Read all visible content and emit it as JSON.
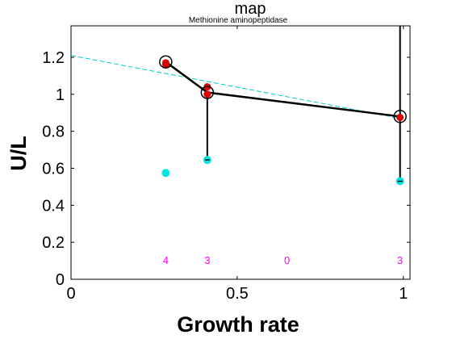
{
  "chart_data": {
    "type": "scatter",
    "title": "map",
    "subtitle": "Methionine aminopeptidase",
    "xlabel": "Growth rate",
    "ylabel": "U/L",
    "xlim": [
      0,
      1.02
    ],
    "ylim": [
      0,
      1.37
    ],
    "xticks": [
      0,
      0.5,
      1
    ],
    "xtick_labels": [
      "0",
      "0.5",
      "1"
    ],
    "yticks": [
      0,
      0.2,
      0.4,
      0.6,
      0.8,
      1.0,
      1.2
    ],
    "ytick_labels": [
      "0",
      "0.2",
      "0.4",
      "0.6",
      "0.8",
      "1",
      "1.2"
    ],
    "grid": false,
    "series": [
      {
        "role": "mean-line",
        "color": "#000000",
        "x": [
          0.285,
          0.41,
          0.99
        ],
        "y": [
          1.175,
          1.01,
          0.88
        ]
      },
      {
        "role": "red-points",
        "color": "#dd0000",
        "x": [
          0.285,
          0.285,
          0.41,
          0.41,
          0.99
        ],
        "y": [
          1.17,
          1.16,
          1.04,
          1.0,
          0.875
        ]
      },
      {
        "role": "cyan-points",
        "color": "#00e5e5",
        "x": [
          0.285,
          0.41,
          0.99
        ],
        "y": [
          0.575,
          0.645,
          0.53
        ]
      },
      {
        "role": "trend-line",
        "color": "#00cccc",
        "style": "dashed",
        "x": [
          0,
          0.99
        ],
        "y": [
          1.21,
          0.87
        ]
      }
    ],
    "error_bars": [
      {
        "x": 0.41,
        "low": 0.645,
        "high": 1.01
      },
      {
        "x": 0.99,
        "low": 0.53,
        "high": 1.37
      }
    ],
    "counts": [
      {
        "x": 0.285,
        "label": "4"
      },
      {
        "x": 0.41,
        "label": "3"
      },
      {
        "x": 0.65,
        "label": "0"
      },
      {
        "x": 0.99,
        "label": "3"
      }
    ],
    "count_y": 0.1,
    "count_color": "#ff00ff"
  }
}
